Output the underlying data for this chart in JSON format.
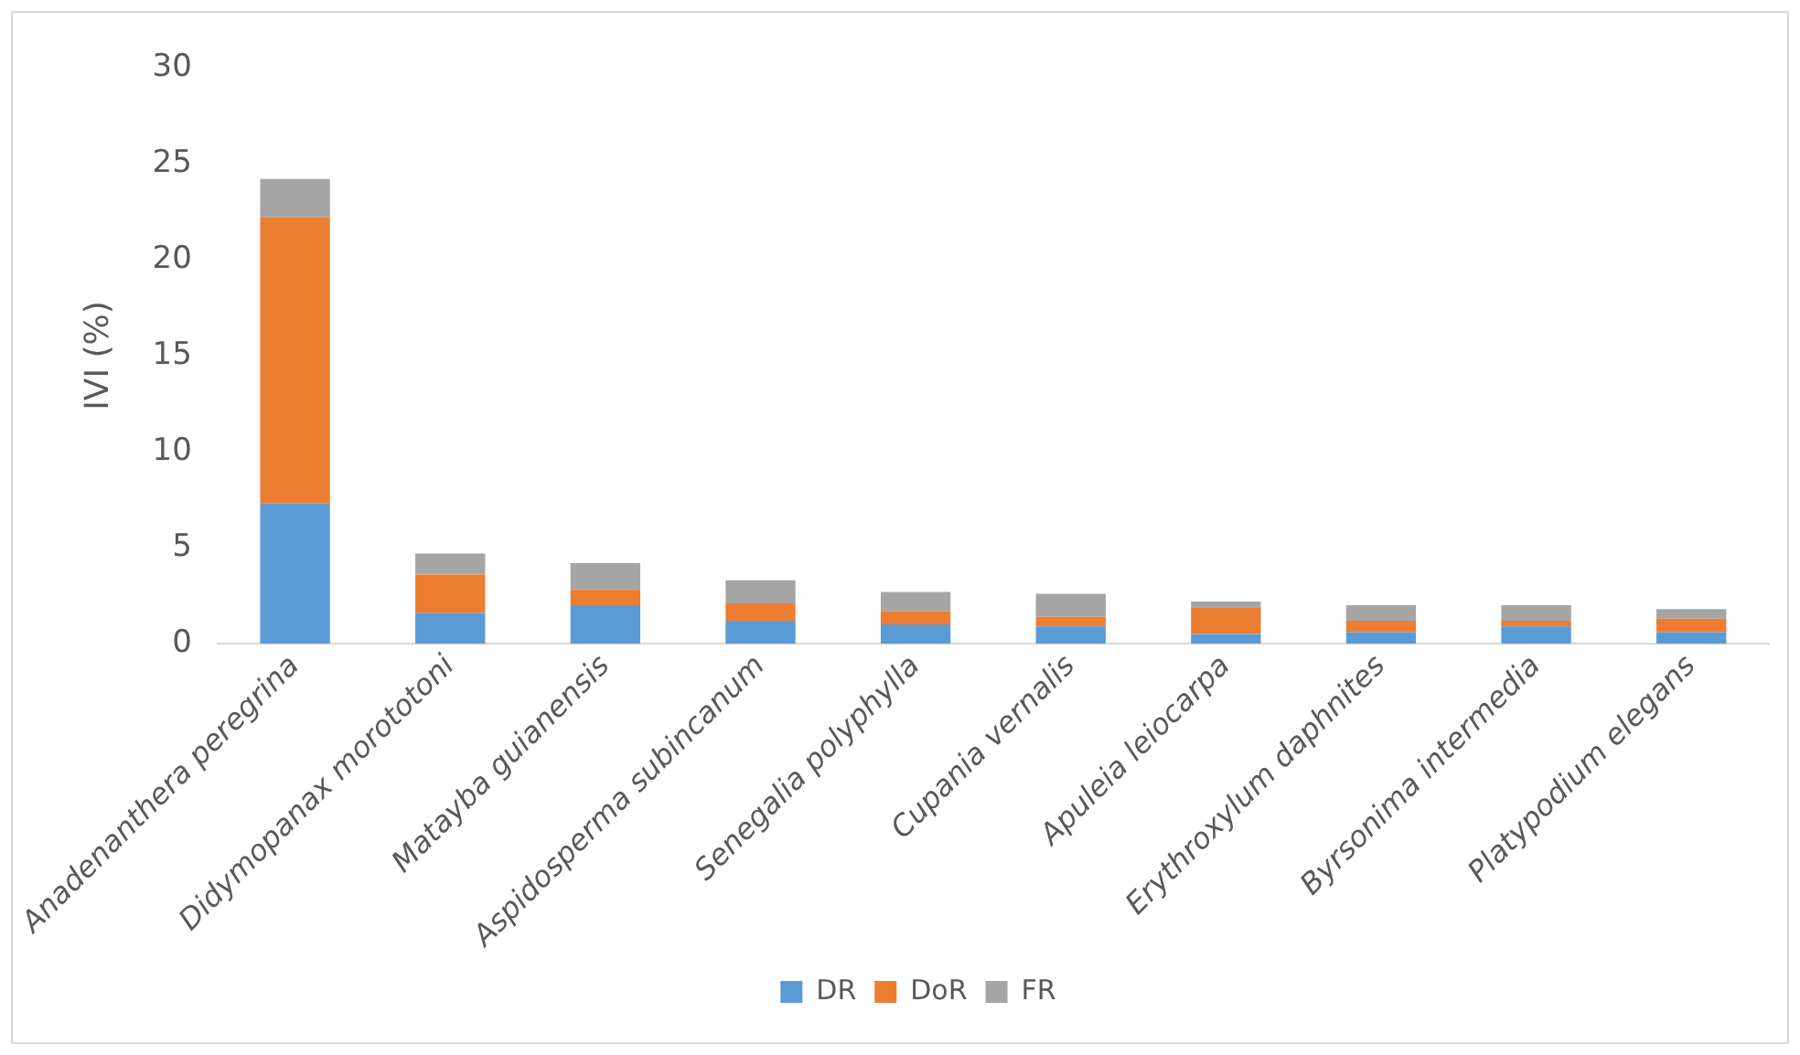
{
  "chart_data": {
    "type": "bar",
    "stacked": true,
    "ylabel": "IVI (%)",
    "categories": [
      "Anadenanthera peregrina",
      "Didymopanax morototoni",
      "Matayba guianensis",
      "Aspidosperma subincanum",
      "Senegalia polyphylla",
      "Cupania vernalis",
      "Apuleia leiocarpa",
      "Erythroxylum daphnites",
      "Byrsonima intermedia",
      "Platypodium elegans"
    ],
    "series": [
      {
        "name": "DR",
        "color": "#5b9bd5",
        "values": [
          7.3,
          1.6,
          2.0,
          1.2,
          1.0,
          0.9,
          0.5,
          0.6,
          0.9,
          0.6
        ]
      },
      {
        "name": "DoR",
        "color": "#ed7d31",
        "values": [
          14.9,
          2.0,
          0.8,
          0.9,
          0.7,
          0.5,
          1.4,
          0.6,
          0.3,
          0.7
        ]
      },
      {
        "name": "FR",
        "color": "#a5a5a5",
        "values": [
          2.0,
          1.1,
          1.4,
          1.2,
          1.0,
          1.2,
          0.3,
          0.8,
          0.8,
          0.5
        ]
      }
    ],
    "ylim": [
      0,
      30
    ],
    "yticks": [
      0,
      5,
      10,
      15,
      20,
      25,
      30
    ],
    "grid": false,
    "legend": "bottom"
  }
}
